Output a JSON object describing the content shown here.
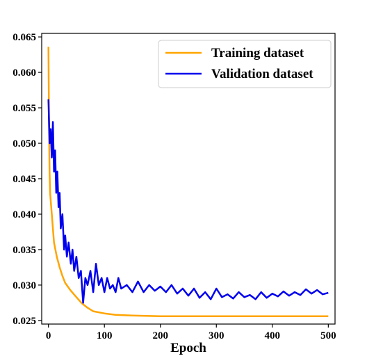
{
  "chart_data": {
    "type": "line",
    "xlabel": "Epoch",
    "ylabel": "",
    "xlim": [
      -12,
      512
    ],
    "ylim": [
      0.0245,
      0.0655
    ],
    "x_ticks": [
      0,
      100,
      200,
      300,
      400,
      500
    ],
    "y_ticks": [
      0.025,
      0.03,
      0.035,
      0.04,
      0.045,
      0.05,
      0.055,
      0.06,
      0.065
    ],
    "x_tick_labels": [
      "0",
      "100",
      "200",
      "300",
      "400",
      "500"
    ],
    "y_tick_labels": [
      "0.025",
      "0.030",
      "0.035",
      "0.040",
      "0.045",
      "0.050",
      "0.055",
      "0.060",
      "0.065"
    ],
    "grid": false,
    "legend_position": "top-right",
    "series": [
      {
        "name": "Training dataset",
        "color": "#FFA500",
        "x": [
          0,
          1,
          2,
          3,
          5,
          8,
          10,
          15,
          20,
          25,
          30,
          40,
          50,
          60,
          70,
          80,
          100,
          120,
          150,
          200,
          250,
          300,
          400,
          500
        ],
        "y": [
          0.0636,
          0.053,
          0.046,
          0.043,
          0.041,
          0.038,
          0.036,
          0.034,
          0.0325,
          0.0313,
          0.0303,
          0.0292,
          0.0283,
          0.0274,
          0.0268,
          0.0263,
          0.026,
          0.0258,
          0.0257,
          0.0256,
          0.0256,
          0.0256,
          0.0256,
          0.0256
        ]
      },
      {
        "name": "Validation dataset",
        "color": "#0000EE",
        "x": [
          0,
          2,
          4,
          6,
          8,
          10,
          12,
          14,
          16,
          18,
          20,
          22,
          25,
          28,
          30,
          33,
          36,
          40,
          43,
          46,
          50,
          54,
          58,
          62,
          66,
          70,
          75,
          80,
          85,
          90,
          95,
          100,
          105,
          110,
          115,
          120,
          125,
          130,
          140,
          150,
          160,
          170,
          180,
          190,
          200,
          210,
          220,
          230,
          240,
          250,
          260,
          270,
          280,
          290,
          300,
          310,
          320,
          330,
          340,
          350,
          360,
          370,
          380,
          390,
          400,
          410,
          420,
          430,
          440,
          450,
          460,
          470,
          480,
          490,
          500
        ],
        "y": [
          0.0562,
          0.05,
          0.052,
          0.048,
          0.053,
          0.046,
          0.049,
          0.043,
          0.046,
          0.041,
          0.043,
          0.038,
          0.04,
          0.035,
          0.037,
          0.034,
          0.036,
          0.033,
          0.035,
          0.032,
          0.034,
          0.031,
          0.032,
          0.0275,
          0.031,
          0.03,
          0.032,
          0.029,
          0.033,
          0.03,
          0.031,
          0.029,
          0.031,
          0.0295,
          0.03,
          0.029,
          0.031,
          0.0295,
          0.03,
          0.029,
          0.0305,
          0.029,
          0.03,
          0.0292,
          0.0298,
          0.029,
          0.03,
          0.0288,
          0.0295,
          0.0285,
          0.0295,
          0.0282,
          0.029,
          0.028,
          0.0295,
          0.0283,
          0.0287,
          0.0281,
          0.029,
          0.0283,
          0.0286,
          0.028,
          0.029,
          0.0282,
          0.0288,
          0.0284,
          0.0291,
          0.0285,
          0.029,
          0.0286,
          0.0294,
          0.0288,
          0.0293,
          0.0287,
          0.0289
        ]
      }
    ]
  }
}
